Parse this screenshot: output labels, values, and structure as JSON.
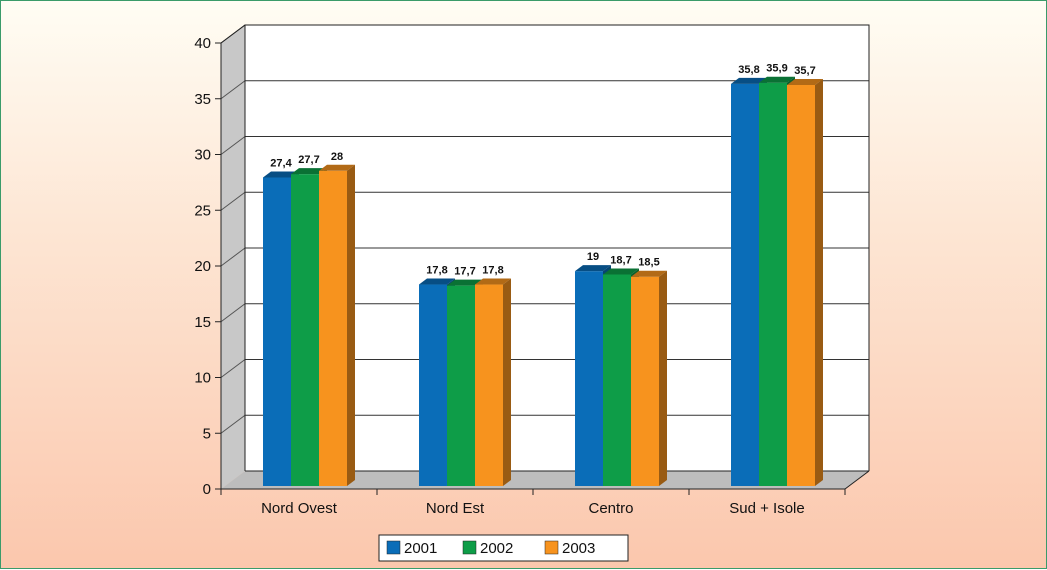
{
  "chart_data": {
    "type": "bar",
    "categories": [
      "Nord Ovest",
      "Nord Est",
      "Centro",
      "Sud + Isole"
    ],
    "series": [
      {
        "name": "2001",
        "values": [
          27.4,
          17.8,
          19,
          35.8
        ],
        "labels": [
          "27,4",
          "17,8",
          "19",
          "35,8"
        ],
        "color": "#0a6db8"
      },
      {
        "name": "2002",
        "values": [
          27.7,
          17.7,
          18.7,
          35.9
        ],
        "labels": [
          "27,7",
          "17,7",
          "18,7",
          "35,9"
        ],
        "color": "#0e9d48"
      },
      {
        "name": "2003",
        "values": [
          28,
          17.8,
          18.5,
          35.7
        ],
        "labels": [
          "28",
          "17,8",
          "18,5",
          "35,7"
        ],
        "color": "#f7931e"
      }
    ],
    "yticks": [
      "0",
      "5",
      "10",
      "15",
      "20",
      "25",
      "30",
      "35",
      "40"
    ],
    "ylim": [
      0,
      40
    ],
    "grid": true,
    "legend_position": "bottom"
  }
}
